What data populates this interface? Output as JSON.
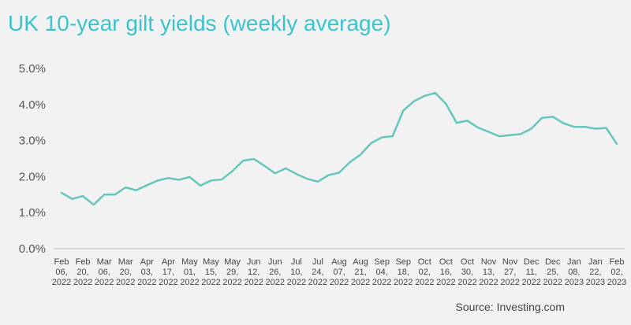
{
  "chart_data": {
    "type": "line",
    "title": "UK 10-year gilt yields (weekly average)",
    "source": "Source: Investing.com",
    "xlabel": "",
    "ylabel": "",
    "ylim": [
      0,
      5
    ],
    "y_ticks": [
      "0.0%",
      "1.0%",
      "2.0%",
      "3.0%",
      "4.0%",
      "5.0%"
    ],
    "x_tick_labels": [
      [
        "Feb",
        "06,",
        "2022"
      ],
      [
        "Feb",
        "20,",
        "2022"
      ],
      [
        "Mar",
        "06,",
        "2022"
      ],
      [
        "Mar",
        "20,",
        "2022"
      ],
      [
        "Apr",
        "03,",
        "2022"
      ],
      [
        "Apr",
        "17,",
        "2022"
      ],
      [
        "May",
        "01,",
        "2022"
      ],
      [
        "May",
        "15,",
        "2022"
      ],
      [
        "May",
        "29,",
        "2022"
      ],
      [
        "Jun",
        "12,",
        "2022"
      ],
      [
        "Jun",
        "26,",
        "2022"
      ],
      [
        "Jul",
        "10,",
        "2022"
      ],
      [
        "Jul",
        "24,",
        "2022"
      ],
      [
        "Aug",
        "07,",
        "2022"
      ],
      [
        "Aug",
        "21,",
        "2022"
      ],
      [
        "Sep",
        "04,",
        "2022"
      ],
      [
        "Sep",
        "18,",
        "2022"
      ],
      [
        "Oct",
        "02,",
        "2022"
      ],
      [
        "Oct",
        "16,",
        "2022"
      ],
      [
        "Oct",
        "30,",
        "2022"
      ],
      [
        "Nov",
        "13,",
        "2022"
      ],
      [
        "Nov",
        "27,",
        "2022"
      ],
      [
        "Dec",
        "11,",
        "2022"
      ],
      [
        "Dec",
        "25,",
        "2022"
      ],
      [
        "Jan",
        "08,",
        "2023"
      ],
      [
        "Jan",
        "22,",
        "2023"
      ],
      [
        "Feb",
        "02,",
        "2023"
      ]
    ],
    "grid": false,
    "line_color": "#64c6bd",
    "series": [
      {
        "values": [
          1.55,
          1.38,
          1.46,
          1.22,
          1.5,
          1.5,
          1.7,
          1.62,
          1.76,
          1.89,
          1.96,
          1.91,
          1.99,
          1.75,
          1.89,
          1.92,
          2.15,
          2.44,
          2.49,
          2.3,
          2.09,
          2.23,
          2.07,
          1.94,
          1.86,
          2.04,
          2.11,
          2.4,
          2.61,
          2.93,
          3.09,
          3.12,
          3.83,
          4.09,
          4.24,
          4.32,
          4.02,
          3.49,
          3.55,
          3.36,
          3.24,
          3.12,
          3.15,
          3.18,
          3.33,
          3.63,
          3.66,
          3.48,
          3.38,
          3.38,
          3.33,
          3.35,
          2.91
        ]
      }
    ]
  },
  "colors": {
    "background": "#f2f2f2",
    "title": "#3cc4ce",
    "line": "#64c6bd",
    "axis": "#bfbfbf"
  }
}
